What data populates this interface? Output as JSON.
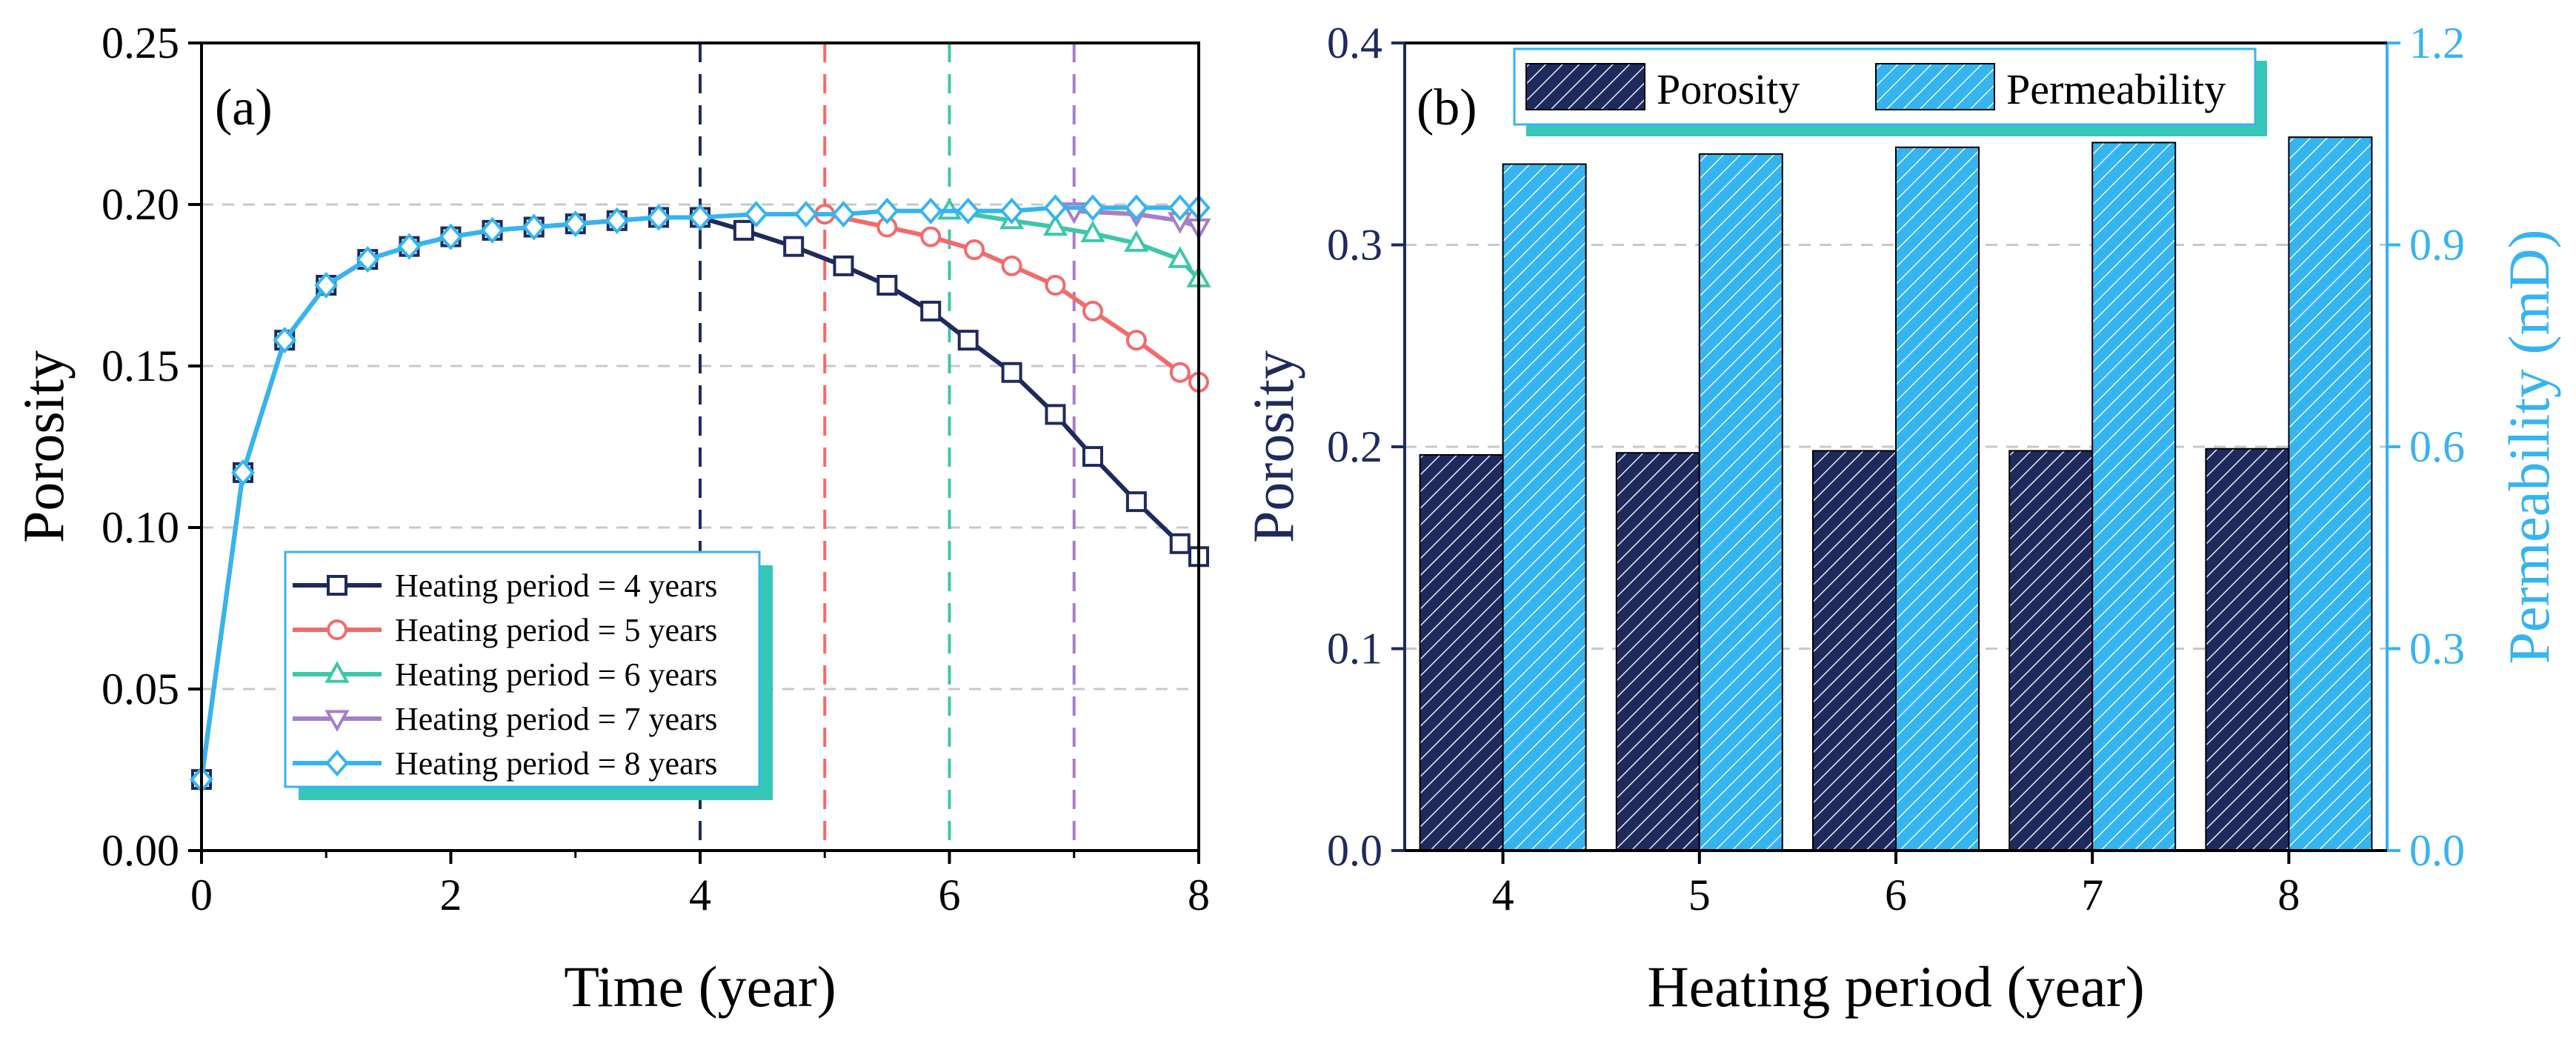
{
  "colors": {
    "navy": "#1f2a5c",
    "red": "#f26b6b",
    "teal": "#3fc6a8",
    "purple": "#a57fc9",
    "sky": "#36b4f0",
    "legend_shadow": "#37c7b8",
    "grid": "#c8c8c8"
  },
  "chart_data": [
    {
      "type": "line",
      "panel_label": "(a)",
      "xlabel": "Time (year)",
      "ylabel": "Porosity",
      "xlim": [
        0,
        8
      ],
      "ylim": [
        0,
        0.25
      ],
      "xticks": [
        "0",
        "2",
        "4",
        "6",
        "8"
      ],
      "yticks": [
        "0.00",
        "0.05",
        "0.10",
        "0.15",
        "0.20",
        "0.25"
      ],
      "grid": "horizontal dashed",
      "vlines": [
        {
          "x": 4,
          "color": "#1f2a5c"
        },
        {
          "x": 5,
          "color": "#f26b6b"
        },
        {
          "x": 6,
          "color": "#3fc6a8"
        },
        {
          "x": 7,
          "color": "#a57fc9"
        }
      ],
      "legend_position": "bottom-left",
      "series": [
        {
          "name": "Heating period = 4 years",
          "color": "#1f2a5c",
          "marker": "square",
          "x": [
            0,
            0.333,
            0.667,
            1.0,
            1.333,
            1.667,
            2.0,
            2.333,
            2.667,
            3.0,
            3.333,
            3.667,
            4.0,
            4.35,
            4.75,
            5.15,
            5.5,
            5.85,
            6.15,
            6.5,
            6.85,
            7.15,
            7.5,
            7.85,
            8.0
          ],
          "values": [
            0.022,
            0.117,
            0.158,
            0.175,
            0.183,
            0.187,
            0.19,
            0.192,
            0.193,
            0.194,
            0.195,
            0.196,
            0.196,
            0.192,
            0.187,
            0.181,
            0.175,
            0.167,
            0.158,
            0.148,
            0.135,
            0.122,
            0.108,
            0.095,
            0.091
          ]
        },
        {
          "name": "Heating period = 5 years",
          "color": "#f26b6b",
          "marker": "circle",
          "x": [
            5.0,
            5.5,
            5.85,
            6.2,
            6.5,
            6.85,
            7.15,
            7.5,
            7.85,
            8.0
          ],
          "values": [
            0.197,
            0.193,
            0.19,
            0.186,
            0.181,
            0.175,
            0.167,
            0.158,
            0.148,
            0.145
          ]
        },
        {
          "name": "Heating period = 6 years",
          "color": "#3fc6a8",
          "marker": "triangle-up",
          "x": [
            6.0,
            6.5,
            6.85,
            7.15,
            7.5,
            7.85,
            8.0
          ],
          "values": [
            0.198,
            0.195,
            0.193,
            0.191,
            0.188,
            0.183,
            0.177
          ]
        },
        {
          "name": "Heating period = 7 years",
          "color": "#a57fc9",
          "marker": "triangle-down",
          "x": [
            7.0,
            7.5,
            7.85,
            8.0
          ],
          "values": [
            0.198,
            0.197,
            0.195,
            0.193
          ]
        },
        {
          "name": "Heating period = 8 years",
          "color": "#36b4f0",
          "marker": "diamond",
          "x": [
            0,
            0.333,
            0.667,
            1.0,
            1.333,
            1.667,
            2.0,
            2.333,
            2.667,
            3.0,
            3.333,
            3.667,
            4.0,
            4.45,
            4.85,
            5.15,
            5.5,
            5.85,
            6.15,
            6.5,
            6.85,
            7.15,
            7.5,
            7.85,
            8.0
          ],
          "values": [
            0.022,
            0.117,
            0.158,
            0.175,
            0.183,
            0.187,
            0.19,
            0.192,
            0.193,
            0.194,
            0.195,
            0.196,
            0.196,
            0.197,
            0.197,
            0.197,
            0.198,
            0.198,
            0.198,
            0.198,
            0.199,
            0.199,
            0.199,
            0.199,
            0.199
          ]
        }
      ]
    },
    {
      "type": "bar",
      "panel_label": "(b)",
      "xlabel": "Heating period (year)",
      "ylabel": "Porosity",
      "y2label": "Permeability (mD)",
      "categories": [
        "4",
        "5",
        "6",
        "7",
        "8"
      ],
      "ylim": [
        0,
        0.4
      ],
      "y2lim": [
        0,
        1.2
      ],
      "yticks": [
        "0.0",
        "0.1",
        "0.2",
        "0.3",
        "0.4"
      ],
      "y2ticks": [
        "0.0",
        "0.3",
        "0.6",
        "0.9",
        "1.2"
      ],
      "grid": "horizontal dashed",
      "legend_position": "top-left",
      "series": [
        {
          "name": "Porosity",
          "axis": "left",
          "color": "#1f2a5c",
          "values": [
            0.196,
            0.197,
            0.198,
            0.198,
            0.199
          ]
        },
        {
          "name": "Permeability",
          "axis": "right",
          "color": "#36b4f0",
          "values": [
            1.02,
            1.035,
            1.045,
            1.052,
            1.06
          ]
        }
      ]
    }
  ]
}
